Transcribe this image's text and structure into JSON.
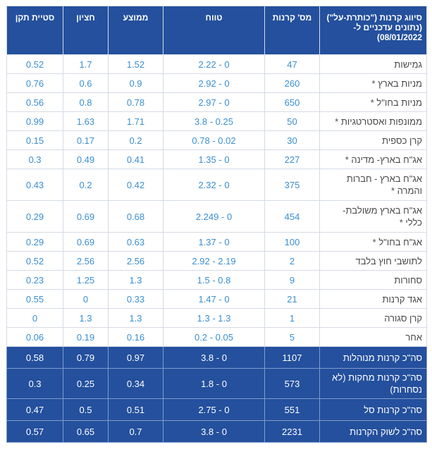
{
  "header": {
    "col_name": "סיווג קרנות (\"כותרת-על\") (נתונים עדכניים ל- 08/01/2022)",
    "col_count": "מס' קרנות",
    "col_range": "טווח",
    "col_avg": "ממוצע",
    "col_median": "חציון",
    "col_std": "סטיית תקן"
  },
  "rows": [
    {
      "name": "גמישות",
      "count": "47",
      "range": "0 - 2.22",
      "avg": "1.52",
      "median": "1.7",
      "std": "0.52"
    },
    {
      "name": "מניות בארץ *",
      "count": "260",
      "range": "0 - 2.92",
      "avg": "0.9",
      "median": "0.6",
      "std": "0.76"
    },
    {
      "name": "מניות בחו\"ל *",
      "count": "650",
      "range": "0 - 2.97",
      "avg": "0.78",
      "median": "0.8",
      "std": "0.56"
    },
    {
      "name": "ממונפות ואסטרטגיות *",
      "count": "50",
      "range": "0.25 - 3.8",
      "avg": "1.71",
      "median": "1.63",
      "std": "0.99"
    },
    {
      "name": "קרן כספית",
      "count": "30",
      "range": "0.02 - 0.78",
      "avg": "0.2",
      "median": "0.17",
      "std": "0.15"
    },
    {
      "name": "אג\"ח בארץ- מדינה *",
      "count": "227",
      "range": "0 - 1.35",
      "avg": "0.41",
      "median": "0.49",
      "std": "0.3"
    },
    {
      "name": "אג\"ח בארץ - חברות והמרה *",
      "count": "375",
      "range": "0 - 2.32",
      "avg": "0.42",
      "median": "0.2",
      "std": "0.43"
    },
    {
      "name": "אג\"ח בארץ משולבת- כללי *",
      "count": "454",
      "range": "0 - 2.249",
      "avg": "0.68",
      "median": "0.69",
      "std": "0.29"
    },
    {
      "name": "אג\"ח בחו\"ל *",
      "count": "100",
      "range": "0 - 1.37",
      "avg": "0.63",
      "median": "0.69",
      "std": "0.29"
    },
    {
      "name": "לתושבי חוץ בלבד",
      "count": "2",
      "range": "2.19 - 2.92",
      "avg": "2.56",
      "median": "2.56",
      "std": "0.52"
    },
    {
      "name": "סחורות",
      "count": "9",
      "range": "0.8 - 1.5",
      "avg": "1.3",
      "median": "1.25",
      "std": "0.23"
    },
    {
      "name": "אגד קרנות",
      "count": "21",
      "range": "0 - 1.47",
      "avg": "0.33",
      "median": "0",
      "std": "0.55"
    },
    {
      "name": "קרן סגורה",
      "count": "1",
      "range": "1.3 - 1.3",
      "avg": "1.3",
      "median": "1.3",
      "std": "0"
    },
    {
      "name": "אחר",
      "count": "5",
      "range": "0.05 - 0.2",
      "avg": "0.16",
      "median": "0.19",
      "std": "0.06"
    }
  ],
  "totals": [
    {
      "name": "סה\"כ קרנות מנוהלות",
      "count": "1107",
      "range": "0 - 3.8",
      "avg": "0.97",
      "median": "0.79",
      "std": "0.58"
    },
    {
      "name": "סה\"כ קרנות מחקות (לא נסחרות)",
      "count": "573",
      "range": "0 - 1.8",
      "avg": "0.34",
      "median": "0.25",
      "std": "0.3"
    },
    {
      "name": "סה\"כ קרנות סל",
      "count": "551",
      "range": "0 - 2.75",
      "avg": "0.51",
      "median": "0.5",
      "std": "0.47"
    },
    {
      "name": "סה\"כ לשוק הקרנות",
      "count": "2231",
      "range": "0 - 3.8",
      "avg": "0.7",
      "median": "0.65",
      "std": "0.57"
    }
  ]
}
